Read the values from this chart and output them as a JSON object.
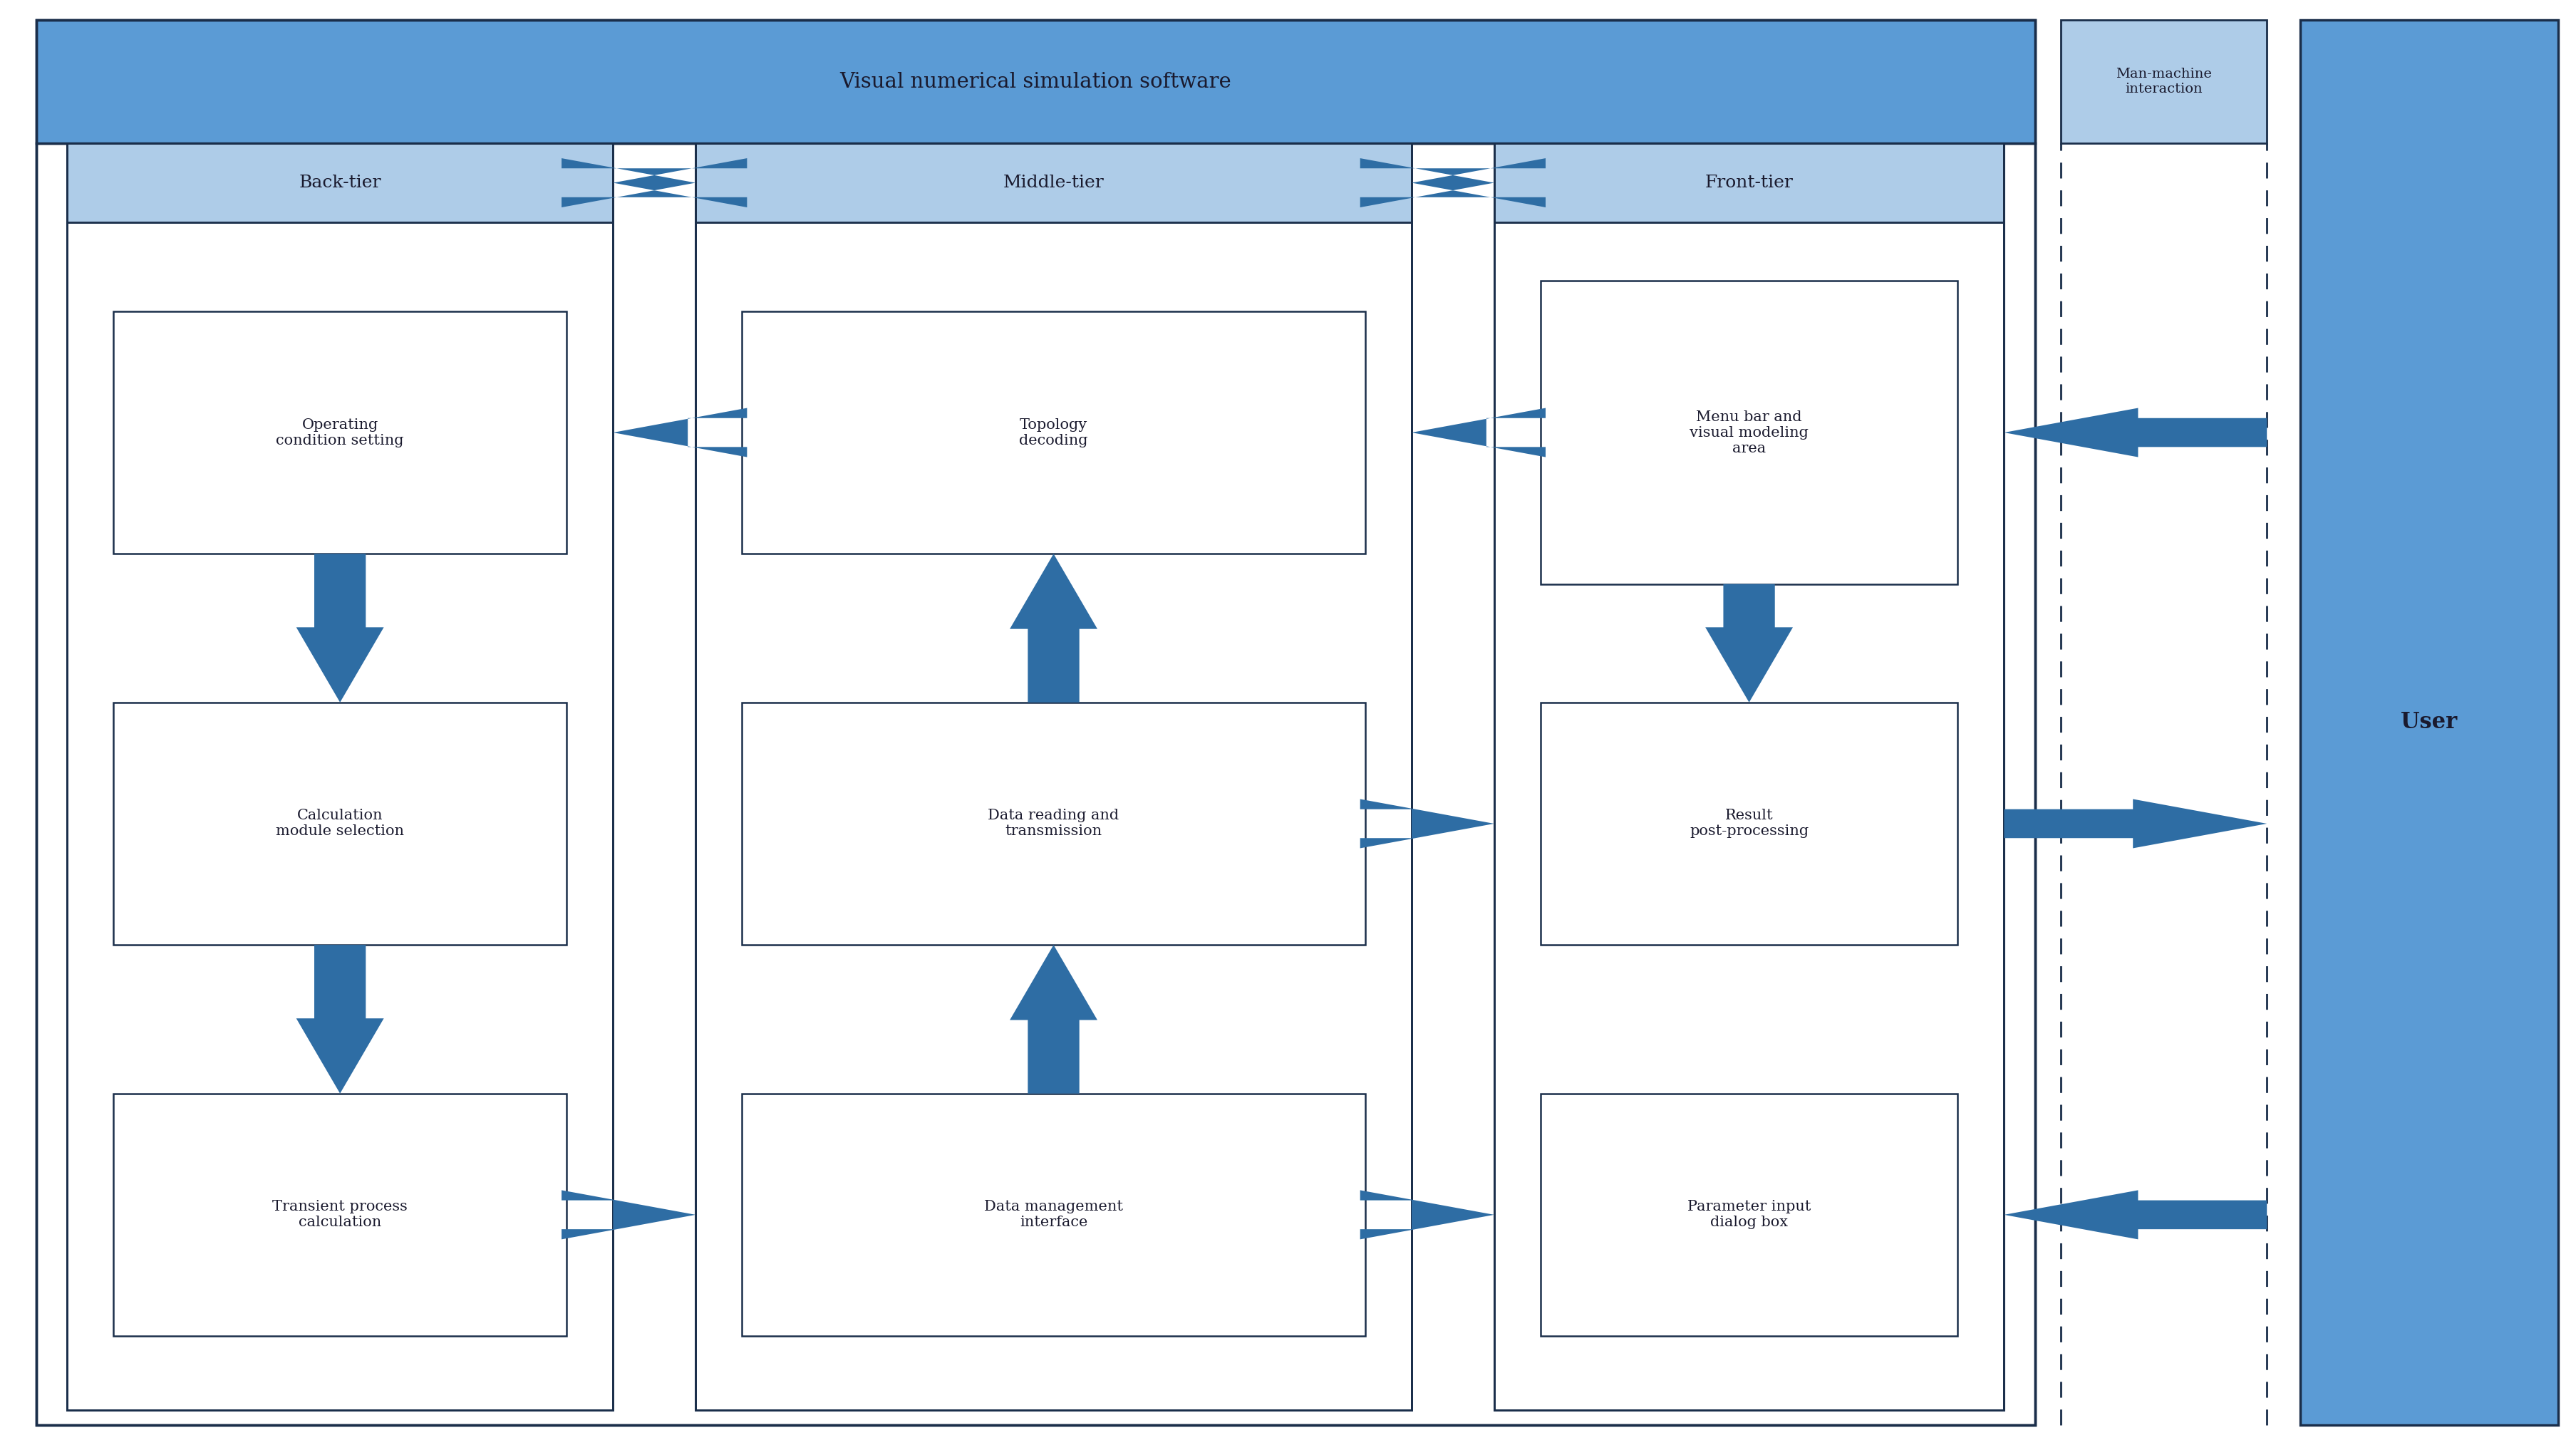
{
  "fig_width": 36.15,
  "fig_height": 20.28,
  "bg_color": "#ffffff",
  "blue_header": "#5b9bd5",
  "light_blue_box": "#aecce8",
  "arrow_color": "#2e6da4",
  "border_color": "#1a2e4a",
  "text_color": "#1a1a2e",
  "title_main": "Visual numerical simulation software",
  "title_man_machine": "Man-machine\ninteraction",
  "label_back": "Back-tier",
  "label_middle": "Middle-tier",
  "label_front": "Front-tier",
  "label_user": "User"
}
